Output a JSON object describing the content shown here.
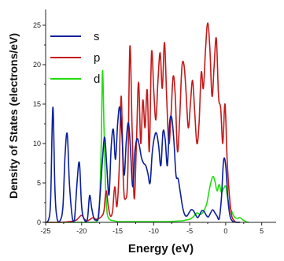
{
  "chart_data": {
    "type": "line",
    "title": "",
    "xlabel": "Energy (eV)",
    "ylabel": "Density of States (electrons/eV)",
    "xlim": [
      -25,
      7
    ],
    "ylim": [
      0,
      27
    ],
    "xticks": [
      -25,
      -20,
      -15,
      -10,
      -5,
      0,
      5
    ],
    "yticks": [
      0,
      5,
      10,
      15,
      20,
      25
    ],
    "legend_position": "top-left",
    "grid": false,
    "series": [
      {
        "name": "s",
        "color": "#0b1f9c",
        "x": [
          -25.0,
          -24.6,
          -24.3,
          -24.0,
          -23.7,
          -23.4,
          -23.0,
          -22.6,
          -22.3,
          -22.0,
          -21.7,
          -21.3,
          -21.0,
          -20.6,
          -20.3,
          -20.0,
          -19.6,
          -19.2,
          -18.9,
          -18.6,
          -18.3,
          -18.0,
          -17.7,
          -17.4,
          -17.1,
          -16.8,
          -16.5,
          -16.2,
          -15.9,
          -15.6,
          -15.3,
          -15.0,
          -14.7,
          -14.4,
          -14.1,
          -13.8,
          -13.5,
          -13.2,
          -12.9,
          -12.6,
          -12.3,
          -12.0,
          -11.7,
          -11.4,
          -11.1,
          -10.8,
          -10.5,
          -10.2,
          -9.9,
          -9.6,
          -9.3,
          -9.0,
          -8.7,
          -8.4,
          -8.1,
          -7.8,
          -7.5,
          -7.2,
          -6.9,
          -6.6,
          -6.3,
          -6.0,
          -5.7,
          -5.4,
          -5.1,
          -4.8,
          -4.5,
          -4.2,
          -3.9,
          -3.6,
          -3.3,
          -3.0,
          -2.7,
          -2.4,
          -2.1,
          -1.8,
          -1.5,
          -1.2,
          -0.9,
          -0.6,
          -0.3,
          0.0,
          0.3,
          0.6,
          0.9,
          1.2,
          1.5,
          2.0
        ],
        "values": [
          0.0,
          0.3,
          3.0,
          14.6,
          4.0,
          0.4,
          0.2,
          2.0,
          8.5,
          11.2,
          5.0,
          0.6,
          0.3,
          5.5,
          7.5,
          2.0,
          0.3,
          0.4,
          3.4,
          1.8,
          0.5,
          0.3,
          0.6,
          4.0,
          8.0,
          10.8,
          7.0,
          3.5,
          9.5,
          11.8,
          8.0,
          12.6,
          14.6,
          11.0,
          6.0,
          10.4,
          12.6,
          9.0,
          4.5,
          9.0,
          10.6,
          9.8,
          8.2,
          7.5,
          7.2,
          6.2,
          5.0,
          8.8,
          10.8,
          11.3,
          9.6,
          7.2,
          11.5,
          10.5,
          7.2,
          12.5,
          13.3,
          10.4,
          6.0,
          5.5,
          3.8,
          2.0,
          1.0,
          0.8,
          1.2,
          1.6,
          1.5,
          1.0,
          0.6,
          1.0,
          1.5,
          1.4,
          0.9,
          0.7,
          1.2,
          1.6,
          1.2,
          0.8,
          0.5,
          3.0,
          7.8,
          7.2,
          3.0,
          0.8,
          0.2,
          0.05,
          0.0,
          0.0
        ]
      },
      {
        "name": "p",
        "color": "#c41a1a",
        "x": [
          -25.0,
          -23.0,
          -21.0,
          -20.5,
          -20.0,
          -19.6,
          -19.2,
          -18.8,
          -18.4,
          -18.0,
          -17.6,
          -17.2,
          -16.9,
          -16.6,
          -16.3,
          -16.0,
          -15.7,
          -15.4,
          -15.1,
          -14.8,
          -14.5,
          -14.2,
          -13.9,
          -13.6,
          -13.3,
          -13.0,
          -12.7,
          -12.4,
          -12.1,
          -11.8,
          -11.5,
          -11.2,
          -10.9,
          -10.6,
          -10.3,
          -10.0,
          -9.7,
          -9.4,
          -9.1,
          -8.8,
          -8.5,
          -8.2,
          -7.9,
          -7.6,
          -7.3,
          -7.0,
          -6.7,
          -6.4,
          -6.1,
          -5.8,
          -5.5,
          -5.2,
          -4.9,
          -4.6,
          -4.3,
          -4.0,
          -3.7,
          -3.4,
          -3.1,
          -2.8,
          -2.5,
          -2.2,
          -1.9,
          -1.6,
          -1.3,
          -1.0,
          -0.7,
          -0.4,
          -0.1,
          0.2,
          0.5,
          0.8,
          1.1,
          1.5,
          2.0
        ],
        "values": [
          0.0,
          0.0,
          0.2,
          0.5,
          0.9,
          0.4,
          0.2,
          0.4,
          0.6,
          0.4,
          0.5,
          0.8,
          1.5,
          4.0,
          2.0,
          0.8,
          1.5,
          4.5,
          2.0,
          6.5,
          16.0,
          5.0,
          3.0,
          6.0,
          22.3,
          12.0,
          3.0,
          10.0,
          17.8,
          10.0,
          15.5,
          12.0,
          16.8,
          9.0,
          21.5,
          17.0,
          13.0,
          18.0,
          21.5,
          17.0,
          22.8,
          16.0,
          10.0,
          13.5,
          18.5,
          16.0,
          9.0,
          13.0,
          19.5,
          20.0,
          16.5,
          12.0,
          15.0,
          18.0,
          14.0,
          10.0,
          12.5,
          19.0,
          17.0,
          22.0,
          25.3,
          22.0,
          16.0,
          20.0,
          23.3,
          16.0,
          14.5,
          10.0,
          15.0,
          8.0,
          3.5,
          1.0,
          0.3,
          0.0,
          0.0
        ]
      },
      {
        "name": "d",
        "color": "#22dd11",
        "x": [
          -25.0,
          -19.0,
          -18.0,
          -17.6,
          -17.3,
          -17.1,
          -16.9,
          -16.7,
          -16.5,
          -16.3,
          -16.0,
          -15.5,
          -15.0,
          -14.0,
          -13.0,
          -12.0,
          -10.0,
          -8.0,
          -7.0,
          -6.0,
          -5.5,
          -5.0,
          -4.5,
          -4.0,
          -3.5,
          -3.0,
          -2.6,
          -2.2,
          -1.8,
          -1.5,
          -1.2,
          -0.9,
          -0.6,
          -0.3,
          0.0,
          0.2,
          0.4,
          0.6,
          0.8,
          1.0,
          1.3,
          1.6,
          2.0,
          2.4,
          2.8,
          3.2
        ],
        "values": [
          0.0,
          0.0,
          0.1,
          1.0,
          9.0,
          19.2,
          12.0,
          5.0,
          1.5,
          0.6,
          0.3,
          0.2,
          0.1,
          0.1,
          0.1,
          0.1,
          0.1,
          0.1,
          0.15,
          0.2,
          0.3,
          0.4,
          0.7,
          1.2,
          1.0,
          1.5,
          2.5,
          4.5,
          5.8,
          5.2,
          4.0,
          4.8,
          3.8,
          4.3,
          4.6,
          3.5,
          2.5,
          1.8,
          1.5,
          1.0,
          0.6,
          0.5,
          0.6,
          0.3,
          0.1,
          0.0
        ]
      }
    ]
  }
}
